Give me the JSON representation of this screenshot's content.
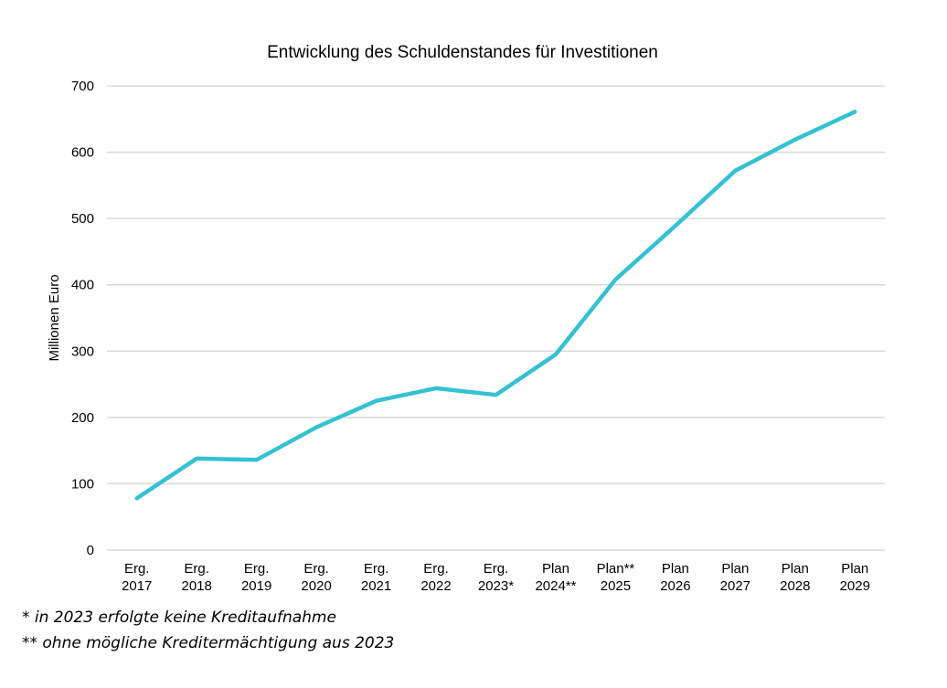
{
  "chart_data": {
    "type": "line",
    "title": "Entwicklung des Schuldenstandes für Investitionen",
    "xlabel": "",
    "ylabel": "Millionen Euro",
    "ylim": [
      0,
      700
    ],
    "yticks": [
      0,
      100,
      200,
      300,
      400,
      500,
      600,
      700
    ],
    "grid": true,
    "legend": "none",
    "categories": [
      [
        "Erg.",
        "2017"
      ],
      [
        "Erg.",
        "2018"
      ],
      [
        "Erg.",
        "2019"
      ],
      [
        "Erg.",
        "2020"
      ],
      [
        "Erg.",
        "2021"
      ],
      [
        "Erg.",
        "2022"
      ],
      [
        "Erg.",
        "2023*"
      ],
      [
        "Plan",
        "2024**"
      ],
      [
        "Plan**",
        "2025"
      ],
      [
        "Plan",
        "2026"
      ],
      [
        "Plan",
        "2027"
      ],
      [
        "Plan",
        "2028"
      ],
      [
        "Plan",
        "2029"
      ]
    ],
    "series": [
      {
        "name": "Schuldenstand für Investitionen",
        "color": "#34c1d3",
        "values": [
          78,
          138,
          136,
          185,
          225,
          244,
          234,
          295,
          408,
          489,
          572,
          619,
          661
        ]
      }
    ]
  },
  "footnotes": [
    "* in 2023 erfolgte keine Kreditaufnahme",
    "** ohne mögliche Kreditermächtigung aus 2023"
  ]
}
